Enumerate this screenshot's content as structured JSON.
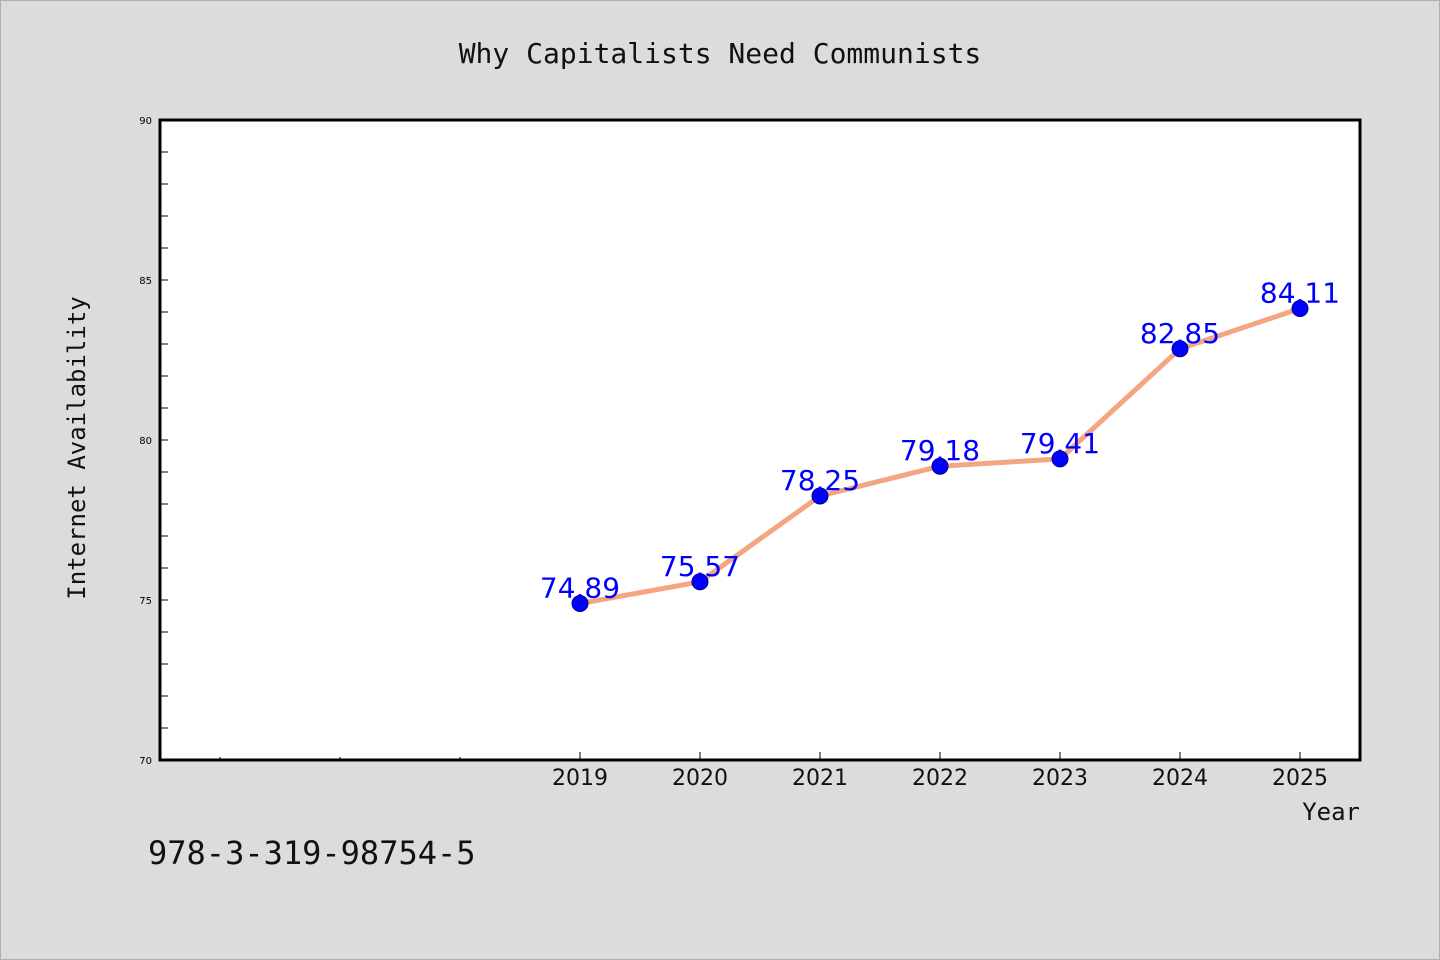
{
  "chart_data": {
    "type": "line",
    "title": "Why Capitalists Need Communists",
    "xlabel": "Year",
    "ylabel": "Internet Availability",
    "x_ticks": [
      "2019",
      "2020",
      "2021",
      "2022",
      "2023",
      "2024",
      "2025"
    ],
    "series": [
      {
        "x": [
          "2019",
          "2020",
          "2021",
          "2022",
          "2023",
          "2024",
          "2025"
        ],
        "values": [
          74.89,
          75.57,
          78.25,
          79.18,
          79.41,
          82.85,
          84.11
        ],
        "data_labels": [
          "74.89",
          "75.57",
          "78.25",
          "79.18",
          "79.41",
          "82.85",
          "84.11"
        ],
        "line_color": "#f4a582",
        "marker_color": "#0000ff"
      }
    ],
    "y_ticks": [
      "70",
      "75",
      "80",
      "85",
      "90"
    ],
    "ylim": [
      70,
      90
    ],
    "grid": false,
    "label_color": "#0000ff"
  },
  "footer_code": "978-3-319-98754-5"
}
